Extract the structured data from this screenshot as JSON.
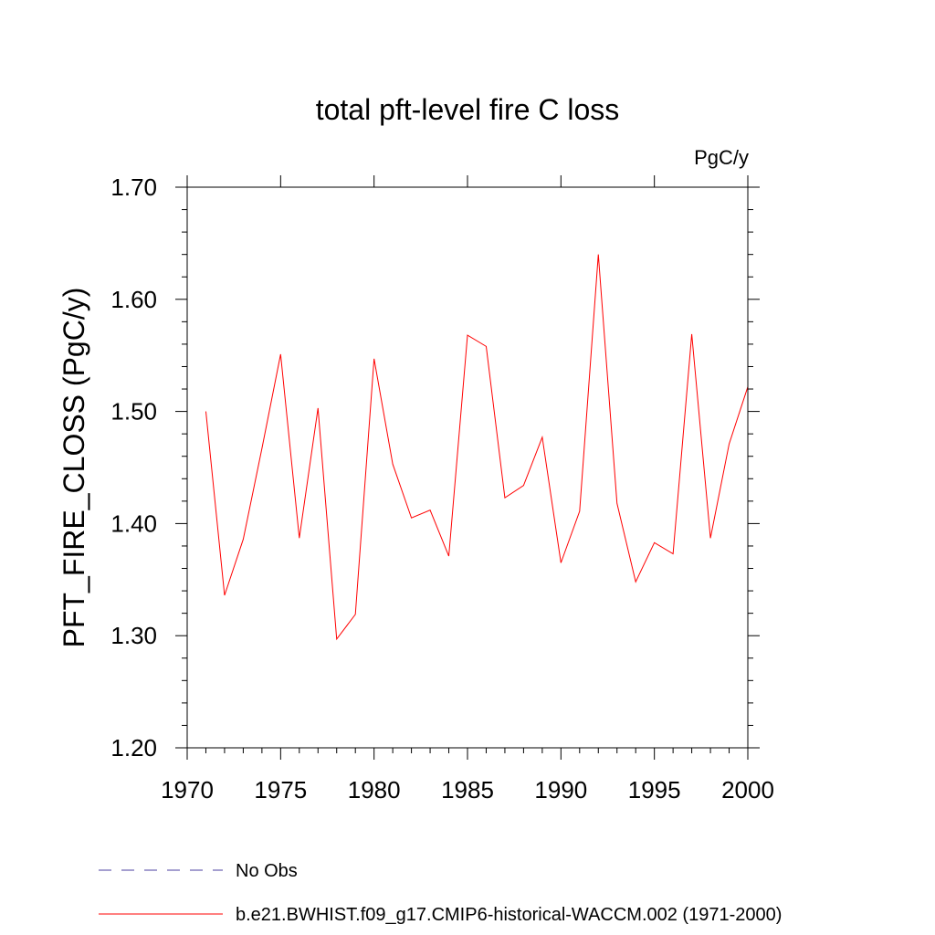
{
  "chart_data": {
    "type": "line",
    "title": "total pft-level fire C loss",
    "units": "PgC/y",
    "ylabel": "PFT_FIRE_CLOSS  (PgC/y)",
    "xlabel": "",
    "xlim": [
      1970,
      2000
    ],
    "ylim": [
      1.2,
      1.7
    ],
    "x_major_ticks": [
      1970,
      1975,
      1980,
      1985,
      1990,
      1995,
      2000
    ],
    "x_tick_labels": [
      "1970",
      "1975",
      "1980",
      "1985",
      "1990",
      "1995",
      "2000"
    ],
    "y_major_ticks": [
      1.2,
      1.3,
      1.4,
      1.5,
      1.6,
      1.7
    ],
    "y_tick_labels": [
      "1.20",
      "1.30",
      "1.40",
      "1.50",
      "1.60",
      "1.70"
    ],
    "grid": false,
    "legend_position": "bottom",
    "series": [
      {
        "name": "b.e21.BWHIST.f09_g17.CMIP6-historical-WACCM.002 (1971-2000)",
        "color": "#ff0000",
        "dash": "solid",
        "x": [
          1971,
          1972,
          1973,
          1974,
          1975,
          1976,
          1977,
          1978,
          1979,
          1980,
          1981,
          1982,
          1983,
          1984,
          1985,
          1986,
          1987,
          1988,
          1989,
          1990,
          1991,
          1992,
          1993,
          1994,
          1995,
          1996,
          1997,
          1998,
          1999,
          2000
        ],
        "values": [
          1.5,
          1.336,
          1.386,
          1.467,
          1.551,
          1.387,
          1.503,
          1.297,
          1.319,
          1.547,
          1.453,
          1.405,
          1.412,
          1.371,
          1.568,
          1.558,
          1.423,
          1.434,
          1.477,
          1.365,
          1.411,
          1.64,
          1.418,
          1.348,
          1.383,
          1.373,
          1.569,
          1.387,
          1.471,
          1.522
        ]
      }
    ],
    "legend": [
      {
        "label": "No Obs",
        "color": "#4b3fa0",
        "dash": "dashed"
      },
      {
        "label": "b.e21.BWHIST.f09_g17.CMIP6-historical-WACCM.002 (1971-2000)",
        "color": "#ff0000",
        "dash": "solid"
      }
    ]
  }
}
